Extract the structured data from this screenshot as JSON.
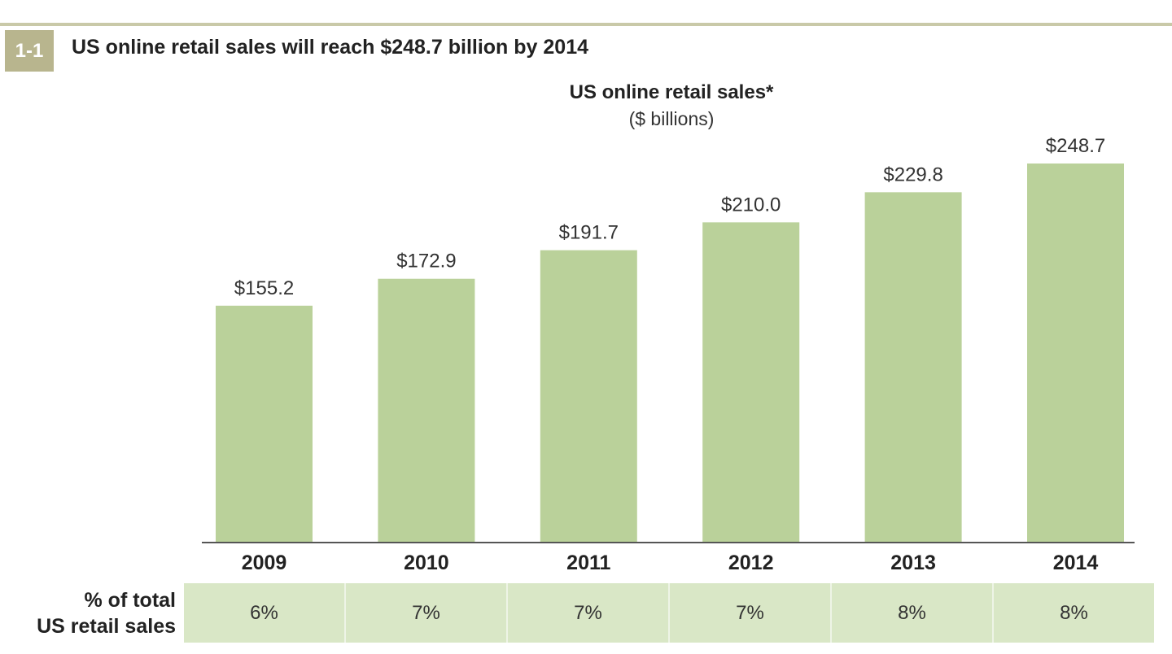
{
  "figure": {
    "number": "1-1",
    "title": "US online retail sales will reach $248.7 billion by 2014"
  },
  "chart_data": {
    "type": "bar",
    "title": "US online retail sales*",
    "subtitle": "($ billions)",
    "categories": [
      "2009",
      "2010",
      "2011",
      "2012",
      "2013",
      "2014"
    ],
    "values": [
      155.2,
      172.9,
      191.7,
      210.0,
      229.8,
      248.7
    ],
    "value_labels": [
      "$155.2",
      "$172.9",
      "$191.7",
      "$210.0",
      "$229.8",
      "$248.7"
    ],
    "ylim": [
      0,
      248.7
    ],
    "grid": false,
    "legend": "none",
    "bar_color": "#bad19a"
  },
  "share_row": {
    "label_line1": "% of total",
    "label_line2": "US retail sales",
    "values": [
      "6%",
      "7%",
      "7%",
      "7%",
      "8%",
      "8%"
    ]
  },
  "colors": {
    "figure_badge": "#b8b58e",
    "table_fill": "#d9e7c6"
  }
}
